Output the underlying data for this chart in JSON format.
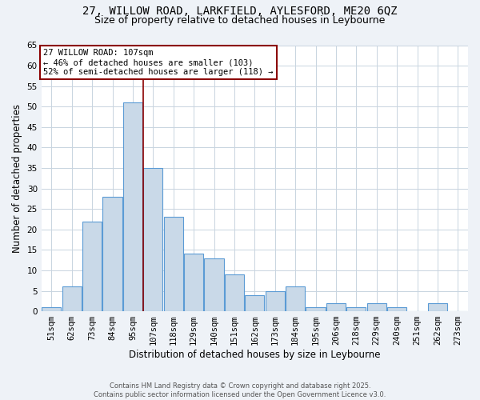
{
  "title_line1": "27, WILLOW ROAD, LARKFIELD, AYLESFORD, ME20 6QZ",
  "title_line2": "Size of property relative to detached houses in Leybourne",
  "xlabel": "Distribution of detached houses by size in Leybourne",
  "ylabel": "Number of detached properties",
  "categories": [
    "51sqm",
    "62sqm",
    "73sqm",
    "84sqm",
    "95sqm",
    "107sqm",
    "118sqm",
    "129sqm",
    "140sqm",
    "151sqm",
    "162sqm",
    "173sqm",
    "184sqm",
    "195sqm",
    "206sqm",
    "218sqm",
    "229sqm",
    "240sqm",
    "251sqm",
    "262sqm",
    "273sqm"
  ],
  "values": [
    1,
    6,
    22,
    28,
    51,
    35,
    23,
    14,
    13,
    9,
    4,
    5,
    6,
    1,
    2,
    1,
    2,
    1,
    0,
    2,
    0
  ],
  "bar_color": "#c9d9e8",
  "bar_edge_color": "#5b9bd5",
  "vline_index": 4.5,
  "vline_color": "#8b0000",
  "annotation_text": "27 WILLOW ROAD: 107sqm\n← 46% of detached houses are smaller (103)\n52% of semi-detached houses are larger (118) →",
  "annotation_box_color": "#ffffff",
  "annotation_box_edge_color": "#8b0000",
  "ylim": [
    0,
    65
  ],
  "yticks": [
    0,
    5,
    10,
    15,
    20,
    25,
    30,
    35,
    40,
    45,
    50,
    55,
    60,
    65
  ],
  "footer_text": "Contains HM Land Registry data © Crown copyright and database right 2025.\nContains public sector information licensed under the Open Government Licence v3.0.",
  "background_color": "#eef2f7",
  "plot_background_color": "#ffffff",
  "grid_color": "#c8d4e0",
  "title_fontsize": 10,
  "subtitle_fontsize": 9,
  "tick_fontsize": 7.5,
  "label_fontsize": 8.5
}
